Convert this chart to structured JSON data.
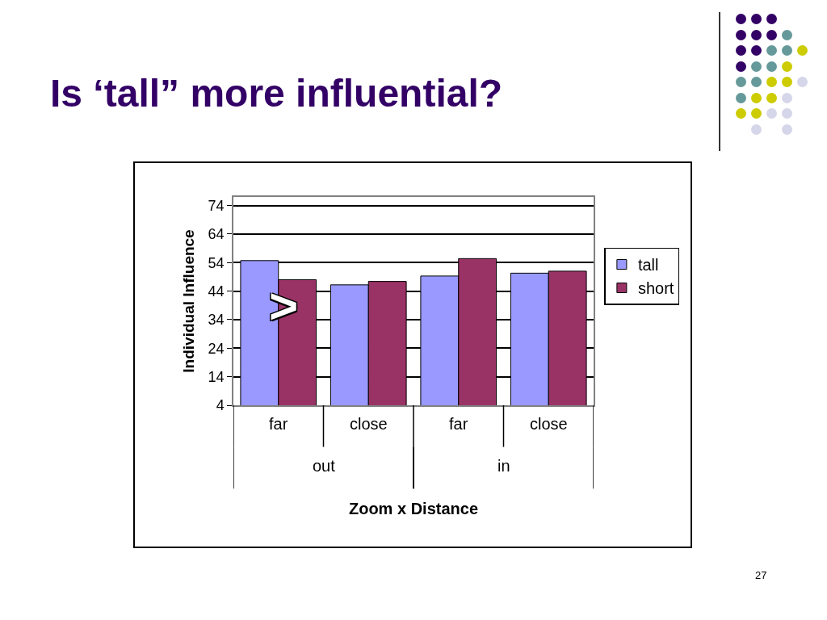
{
  "chart_data": {
    "type": "bar",
    "title": "Is ‘tall” more influential?",
    "xlabel": "Zoom x Distance",
    "ylabel": "Individual Influence",
    "categories": [
      "far",
      "close",
      "far",
      "close"
    ],
    "series": [
      {
        "name": "tall",
        "color": "#9999ff",
        "values": [
          54.7,
          46.2,
          49.3,
          50.3
        ]
      },
      {
        "name": "short",
        "color": "#993366",
        "values": [
          48.0,
          47.4,
          55.4,
          51.0
        ]
      }
    ],
    "ylim": [
      4,
      77
    ],
    "yticks": [
      4,
      14,
      24,
      34,
      44,
      54,
      64,
      74
    ],
    "grid": "y",
    "legend": "right",
    "annotations": [
      {
        "text": ">",
        "x": "far",
        "y": 39
      },
      "out",
      "in",
      "27"
    ]
  }
}
